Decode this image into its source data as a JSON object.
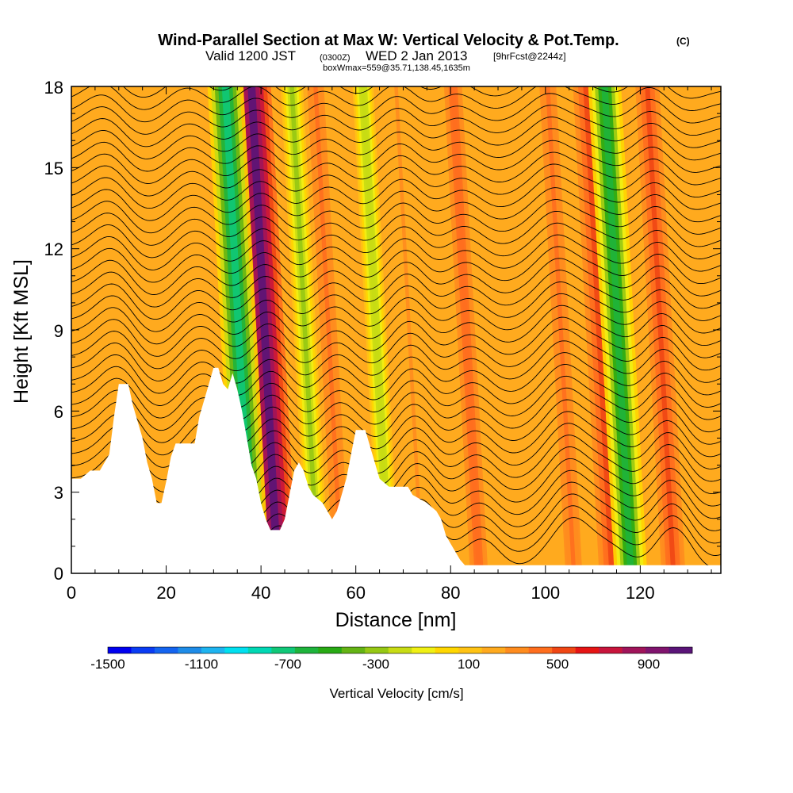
{
  "chart_data": {
    "type": "heatmap",
    "title": "Wind-Parallel Section at Max W: Vertical Velocity & Pot.Temp.",
    "title_mark": "(C)",
    "subtitle": {
      "prefix": "Valid 1200 JST",
      "utc": "(0300Z)",
      "date": "WED 2 Jan 2013",
      "forecast": "[9hrFcst@2244z]"
    },
    "info_line": "boxWmax=559@35.71,138.45,1635m",
    "xlabel": "Distance [nm]",
    "ylabel": "Height [Kft MSL]",
    "xlim": [
      0,
      137
    ],
    "ylim": [
      0,
      18
    ],
    "x_ticks": [
      "0",
      "20",
      "40",
      "60",
      "80",
      "100",
      "120"
    ],
    "y_ticks": [
      "0",
      "3",
      "6",
      "9",
      "12",
      "15",
      "18"
    ],
    "colorbar": {
      "label": "Vertical Velocity [cm/s]",
      "tick_labels": [
        "-1500",
        "-1100",
        "-700",
        "-300",
        "100",
        "500",
        "900"
      ],
      "colors": [
        "#0000f0",
        "#0a3cf4",
        "#1464f0",
        "#1e8ce8",
        "#1eb4f0",
        "#00e0f0",
        "#00d8b4",
        "#10c878",
        "#1eb43c",
        "#28aa14",
        "#64b414",
        "#96c814",
        "#c8dc14",
        "#f0f014",
        "#ffd700",
        "#ffc314",
        "#ffaa1e",
        "#ff8c1e",
        "#ff6e1e",
        "#f04614",
        "#e61414",
        "#c8143c",
        "#a0145a",
        "#80146e",
        "#5a1478"
      ]
    },
    "terrain_kft": [
      [
        0,
        3.5
      ],
      [
        2,
        3.5
      ],
      [
        4,
        3.8
      ],
      [
        6,
        3.8
      ],
      [
        8,
        4.4
      ],
      [
        9,
        5.8
      ],
      [
        10,
        7.0
      ],
      [
        12,
        7.0
      ],
      [
        13,
        6.2
      ],
      [
        15,
        5.0
      ],
      [
        16,
        4.1
      ],
      [
        17,
        3.5
      ],
      [
        18,
        2.6
      ],
      [
        19,
        2.6
      ],
      [
        20,
        3.4
      ],
      [
        21,
        4.3
      ],
      [
        22,
        4.8
      ],
      [
        26,
        4.8
      ],
      [
        27,
        5.8
      ],
      [
        28,
        6.4
      ],
      [
        29,
        7.0
      ],
      [
        30,
        7.6
      ],
      [
        31,
        7.6
      ],
      [
        32,
        7.0
      ],
      [
        33,
        6.8
      ],
      [
        34,
        7.4
      ],
      [
        35,
        6.8
      ],
      [
        36,
        6.0
      ],
      [
        37,
        5.0
      ],
      [
        38,
        4.0
      ],
      [
        39,
        3.5
      ],
      [
        40,
        2.6
      ],
      [
        41,
        2.0
      ],
      [
        42,
        1.6
      ],
      [
        44,
        1.6
      ],
      [
        45,
        2.0
      ],
      [
        46,
        2.9
      ],
      [
        47,
        3.8
      ],
      [
        48,
        4.1
      ],
      [
        49,
        3.8
      ],
      [
        50,
        3.2
      ],
      [
        51,
        2.9
      ],
      [
        53,
        2.6
      ],
      [
        54,
        2.3
      ],
      [
        55,
        2.0
      ],
      [
        56,
        2.3
      ],
      [
        57,
        2.9
      ],
      [
        58,
        3.5
      ],
      [
        59,
        4.4
      ],
      [
        60,
        5.3
      ],
      [
        62,
        5.3
      ],
      [
        63,
        4.7
      ],
      [
        64,
        4.1
      ],
      [
        65,
        3.5
      ],
      [
        67,
        3.2
      ],
      [
        71,
        3.2
      ],
      [
        72,
        2.9
      ],
      [
        75,
        2.6
      ],
      [
        77,
        2.3
      ],
      [
        78,
        2.0
      ],
      [
        79,
        1.4
      ],
      [
        80,
        1.1
      ],
      [
        81,
        0.8
      ],
      [
        82,
        0.5
      ],
      [
        83,
        0.3
      ],
      [
        90,
        0.3
      ],
      [
        91,
        0.3
      ],
      [
        137,
        0.3
      ]
    ],
    "updraft_bands": [
      {
        "x": 43.5,
        "w_cm_s": 900
      },
      {
        "x": 57,
        "w_cm_s": 300
      },
      {
        "x": 74,
        "w_cm_s": 200
      },
      {
        "x": 86,
        "w_cm_s": 350
      },
      {
        "x": 106,
        "w_cm_s": 300
      },
      {
        "x": 114,
        "w_cm_s": 450
      },
      {
        "x": 127,
        "w_cm_s": 400
      }
    ],
    "downdraft_bands": [
      {
        "x": 38,
        "w_cm_s": -800
      },
      {
        "x": 52,
        "w_cm_s": -350
      },
      {
        "x": 67,
        "w_cm_s": -300
      },
      {
        "x": 118,
        "w_cm_s": -700
      }
    ],
    "max_w_cm_s": 559
  }
}
